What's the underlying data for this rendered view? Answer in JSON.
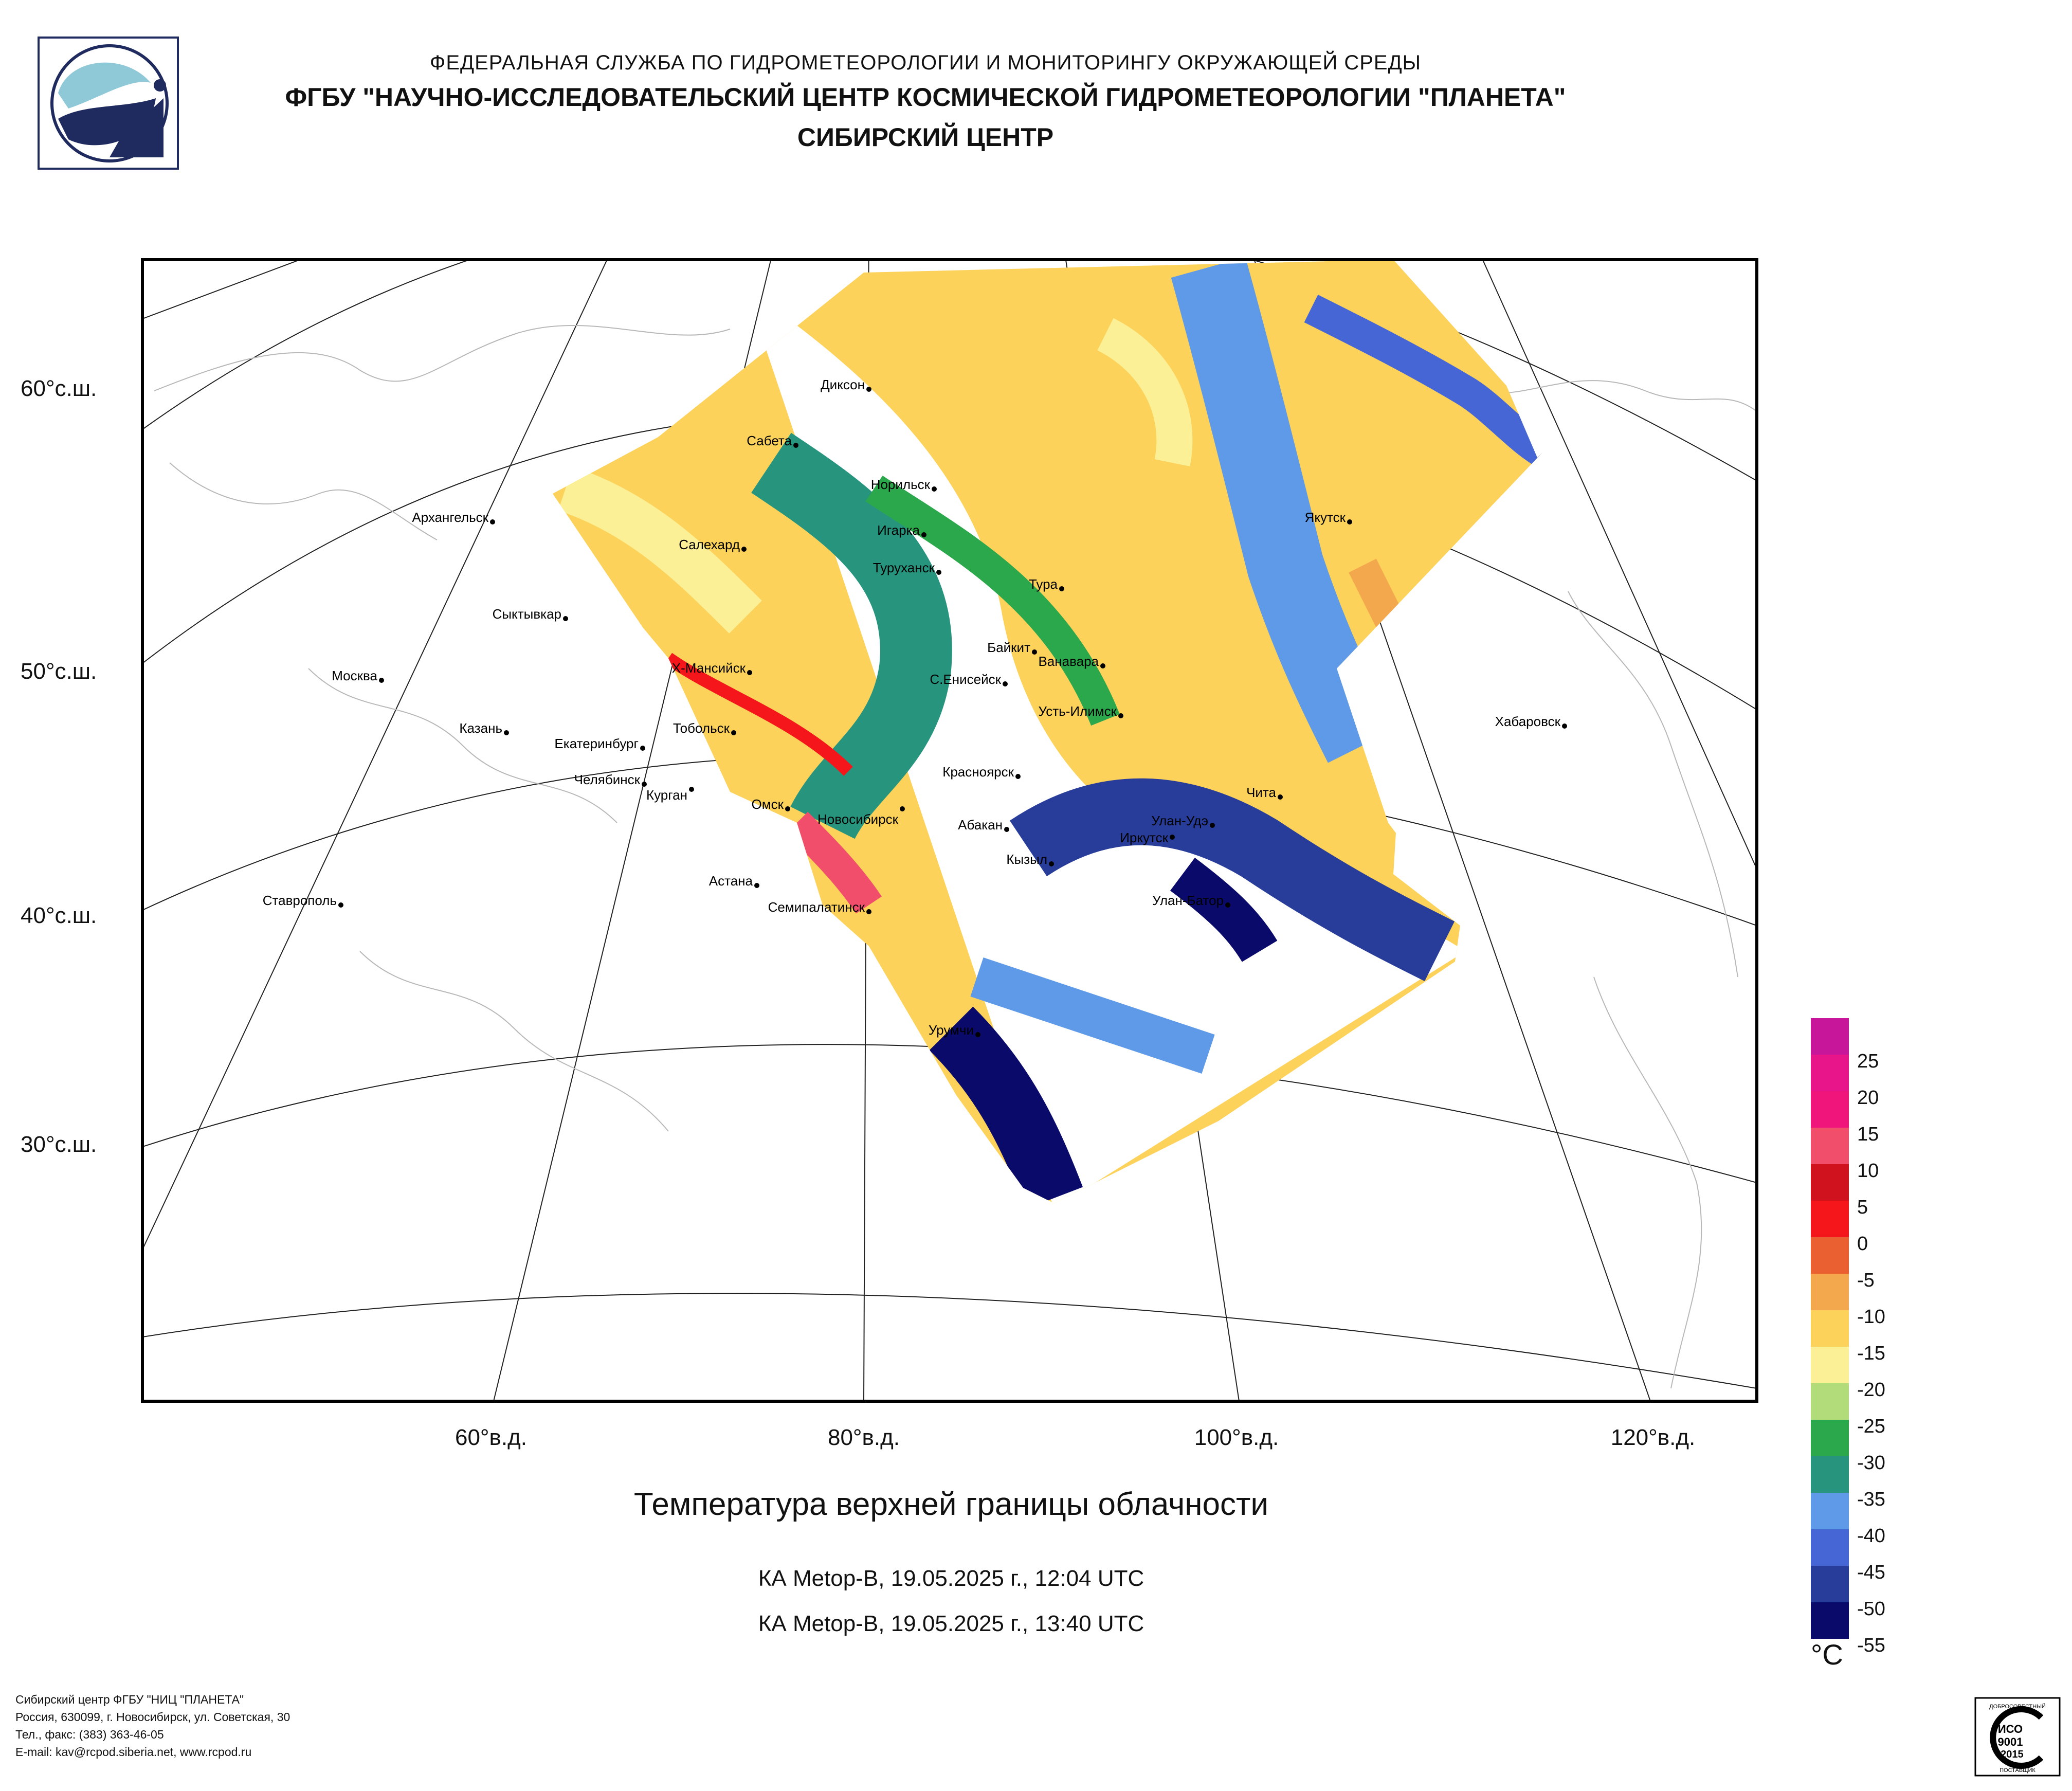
{
  "header": {
    "line1": "ФЕДЕРАЛЬНАЯ СЛУЖБА ПО ГИДРОМЕТЕОРОЛОГИИ И МОНИТОРИНГУ ОКРУЖАЮЩЕЙ СРЕДЫ",
    "line2": "ФГБУ \"НАУЧНО-ИССЛЕДОВАТЕЛЬСКИЙ ЦЕНТР КОСМИЧЕСКОЙ ГИДРОМЕТЕОРОЛОГИИ \"ПЛАНЕТА\"",
    "line3": "СИБИРСКИЙ ЦЕНТР"
  },
  "map": {
    "lat_labels": [
      "60°с.ш.",
      "50°с.ш.",
      "40°с.ш.",
      "30°с.ш."
    ],
    "lon_labels": [
      "60°в.д.",
      "80°в.д.",
      "100°в.д.",
      "120°в.д."
    ],
    "cities": [
      "Диксон",
      "Сабета",
      "Норильск",
      "Игарка",
      "Архангельск",
      "Салехард",
      "Туруханск",
      "Тура",
      "Сыктывкар",
      "Якутск",
      "Байкит",
      "Ванавара",
      "Москва",
      "Х-Мансийск",
      "С.Енисейск",
      "Усть-Илимск",
      "Казань",
      "Тобольск",
      "Екатеринбург",
      "Хабаровск",
      "Челябинск",
      "Красноярск",
      "Курган",
      "Чита",
      "Омск",
      "Новосибирск",
      "Абакан",
      "Улан-Удэ",
      "Иркутск",
      "Кызыл",
      "Астана",
      "Ставрополь",
      "Улан-Батор",
      "Семипалатинск",
      "Урумчи"
    ]
  },
  "product": {
    "title": "Температура верхней границы облачности",
    "pass1": "КА Metop-B, 19.05.2025 г., 12:04 UTC",
    "pass2": "КА Metop-B, 19.05.2025 г., 13:40 UTC"
  },
  "legend": {
    "unit": "°C",
    "labels": [
      "25",
      "20",
      "15",
      "10",
      "5",
      "0",
      "-5",
      "-10",
      "-15",
      "-20",
      "-25",
      "-30",
      "-35",
      "-40",
      "-45",
      "-50",
      "-55"
    ],
    "colors": [
      "#c8169b",
      "#e8158a",
      "#f0157a",
      "#f04e6a",
      "#d0121e",
      "#f4161a",
      "#ea6030",
      "#f4a84e",
      "#fcd25a",
      "#fcf096",
      "#b2dc7a",
      "#2ca84c",
      "#27957e",
      "#5e9ae8",
      "#4666d6",
      "#283c9a",
      "#0a0a6a"
    ]
  },
  "footer": {
    "line1": "Сибирский центр ФГБУ \"НИЦ \"ПЛАНЕТА\"",
    "line2": "Россия, 630099, г. Новосибирск, ул. Советская, 30",
    "line3": "Тел., факс: (383) 363-46-05",
    "line4": "E-mail: kav@rcpod.siberia.net, www.rcpod.ru"
  },
  "iso": {
    "top": "ДОБРОСОВЕСТНЫЙ",
    "line1": "ИСО",
    "line2": "9001",
    "line3": "-2015",
    "bottom": "ПОСТАВЩИК"
  }
}
